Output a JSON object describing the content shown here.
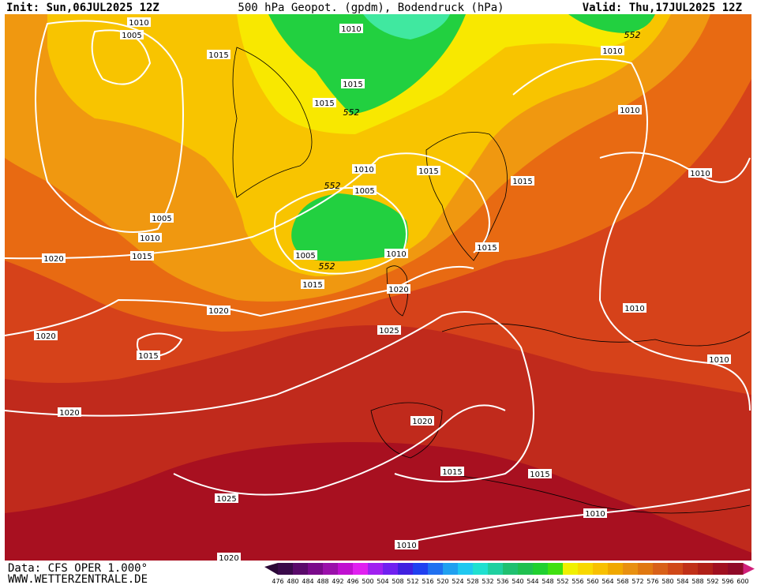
{
  "header": {
    "init": "Init: Sun,06JUL2025 12Z",
    "title": "500 hPa Geopot. (gpdm), Bodendruck (hPa)",
    "valid": "Valid: Thu,17JUL2025 12Z"
  },
  "footer": {
    "data": "Data: CFS OPER 1.000°",
    "site": "WWW.WETTERZENTRALE.DE"
  },
  "pressure_labels": [
    "1010",
    "1005",
    "1010",
    "1015",
    "1015",
    "1015",
    "1010",
    "1010",
    "1010",
    "1010",
    "1015",
    "1005",
    "1015",
    "1005",
    "1010",
    "1015",
    "1020",
    "1005",
    "1010",
    "1015",
    "1015",
    "1020",
    "1020",
    "1010",
    "1025",
    "1020",
    "1015",
    "1010",
    "1020",
    "1020",
    "1015",
    "1015",
    "1025",
    "1010",
    "1010",
    "1020"
  ],
  "geopotential_labels": [
    "552",
    "552",
    "552",
    "552"
  ],
  "colorbar": {
    "labels": [
      476,
      480,
      484,
      488,
      492,
      496,
      500,
      504,
      508,
      512,
      516,
      520,
      524,
      528,
      532,
      536,
      540,
      544,
      548,
      552,
      556,
      560,
      564,
      568,
      572,
      576,
      580,
      584,
      588,
      592,
      596,
      600
    ],
    "colors": [
      "#3a0a4a",
      "#5a0a6a",
      "#7a0a8a",
      "#9a10aa",
      "#c010d0",
      "#e020f0",
      "#a020f0",
      "#7020f0",
      "#4020e0",
      "#2040f0",
      "#2070f0",
      "#20a0f0",
      "#20c8f0",
      "#20e0d0",
      "#20d0a0",
      "#20c070",
      "#20c050",
      "#20d030",
      "#40e010",
      "#f0f000",
      "#f8d800",
      "#f8c000",
      "#f0a800",
      "#e89010",
      "#e07810",
      "#d86018",
      "#d04818",
      "#c03018",
      "#b02018",
      "#a01020",
      "#900a28"
    ]
  }
}
